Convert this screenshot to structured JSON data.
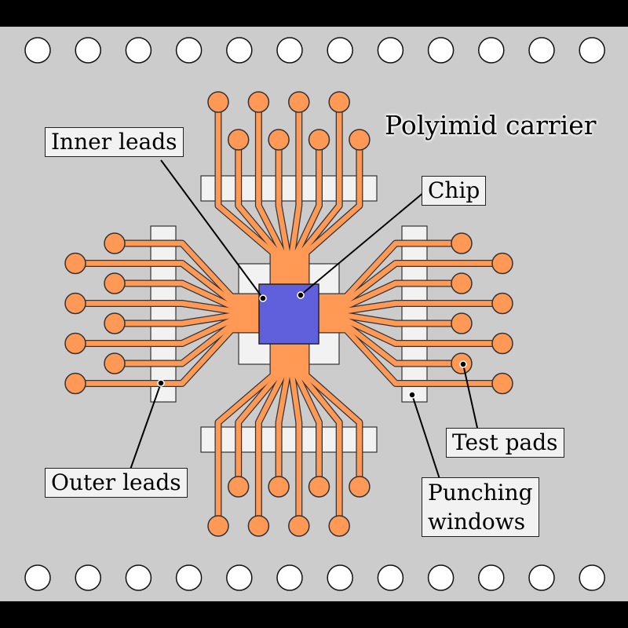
{
  "title": "Polyimid carrier",
  "labels": {
    "inner_leads": "Inner leads",
    "chip": "Chip",
    "outer_leads": "Outer leads",
    "test_pads": "Test pads",
    "punching_windows": "Punching\nwindows"
  },
  "colors": {
    "frame": "#000000",
    "carrier": "#cccccc",
    "window": "#f2f2f2",
    "lead": "#ff9955",
    "lead_outline": "#333333",
    "chip": "#6060dd",
    "callout_bg": "#f2f2f2",
    "hole": "#ffffff"
  },
  "sprocket_holes_per_row": 12,
  "leads_per_side": 8
}
